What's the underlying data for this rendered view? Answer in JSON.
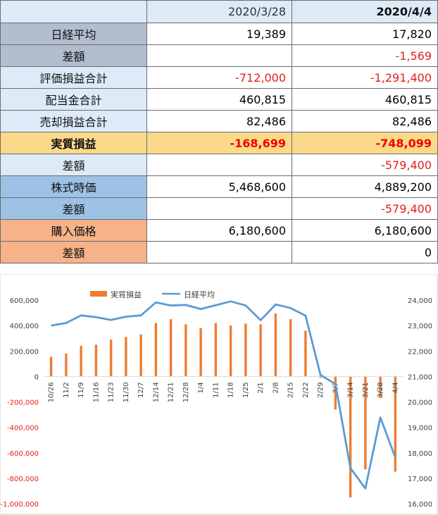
{
  "table": {
    "header": {
      "label": "",
      "col1": "2020/3/28",
      "col2": "2020/4/4"
    },
    "rows": [
      {
        "label": "日経平均",
        "v1": "19,389",
        "v2": "17,820"
      },
      {
        "label": "差額",
        "v1": "",
        "v2": "-1,569"
      },
      {
        "label": "評価損益合計",
        "v1": "-712,000",
        "v2": "-1,291,400"
      },
      {
        "label": "配当金合計",
        "v1": "460,815",
        "v2": "460,815"
      },
      {
        "label": "売却損益合計",
        "v1": "82,486",
        "v2": "82,486"
      },
      {
        "label": "実質損益",
        "v1": "-168,699",
        "v2": "-748,099"
      },
      {
        "label": "差額",
        "v1": "",
        "v2": "-579,400"
      },
      {
        "label": "株式時価",
        "v1": "5,468,600",
        "v2": "4,889,200"
      },
      {
        "label": "差額",
        "v1": "",
        "v2": "-579,400"
      },
      {
        "label": "購入価格",
        "v1": "6,180,600",
        "v2": "6,180,600"
      },
      {
        "label": "差額",
        "v1": "",
        "v2": "0"
      }
    ]
  },
  "colors": {
    "bar": "#ed7d31",
    "line": "#5b9bd5",
    "negative_text": "#e02020",
    "label_blue_gray": "#b2bdcf",
    "label_light_blue": "#dcebf7",
    "label_gold": "#fbd98a",
    "label_mid_blue": "#9dc2e6",
    "label_orange": "#f6b289"
  },
  "chart_data": {
    "type": "bar+line",
    "categories": [
      "10/26",
      "11/2",
      "11/9",
      "11/16",
      "11/23",
      "11/30",
      "12/7",
      "12/14",
      "12/21",
      "12/28",
      "1/4",
      "1/11",
      "1/18",
      "1/25",
      "2/1",
      "2/8",
      "2/15",
      "2/22",
      "2/29",
      "3/7",
      "3/14",
      "3/21",
      "3/28",
      "4/4"
    ],
    "x_tick_labels": [
      "10/26",
      "11/2",
      "11/9",
      "11/16",
      "11/23",
      "11/30",
      "12/7",
      "12/14",
      "12/21",
      "12/28",
      "1/4",
      "1/11",
      "1/18",
      "1/25",
      "2/1",
      "2/8",
      "2/15",
      "2/22",
      "2/29",
      "3/7",
      "3/14",
      "3/21",
      "3/28",
      "4/4"
    ],
    "series": [
      {
        "name": "実質損益",
        "type": "bar",
        "axis": "left",
        "values": [
          155000,
          180000,
          240000,
          250000,
          290000,
          310000,
          330000,
          420000,
          450000,
          410000,
          380000,
          420000,
          400000,
          415000,
          410000,
          495000,
          450000,
          360000,
          -10000,
          -260000,
          -950000,
          -730000,
          -168699,
          -748099
        ]
      },
      {
        "name": "日経平均",
        "type": "line",
        "axis": "right",
        "values": [
          23000,
          23100,
          23400,
          23330,
          23220,
          23350,
          23400,
          23910,
          23790,
          23810,
          23650,
          23800,
          23950,
          23790,
          23210,
          23830,
          23690,
          23390,
          21060,
          20700,
          17400,
          16600,
          19389,
          17820
        ]
      }
    ],
    "left_axis": {
      "min": -1000000,
      "max": 600000,
      "step": 200000,
      "tick_labels": [
        "600,000",
        "400,000",
        "200,000",
        "0",
        "-200,000",
        "-400,000",
        "-600,000",
        "-800,000",
        "-1,000,000"
      ]
    },
    "right_axis": {
      "min": 16000,
      "max": 24000,
      "step": 1000,
      "tick_labels": [
        "24,000",
        "23,000",
        "22,000",
        "21,000",
        "20,000",
        "19,000",
        "18,000",
        "17,000",
        "16,000"
      ]
    },
    "legend": {
      "position": "top-center",
      "bar_label": "実質損益",
      "line_label": "日経平均"
    },
    "grid": false
  }
}
